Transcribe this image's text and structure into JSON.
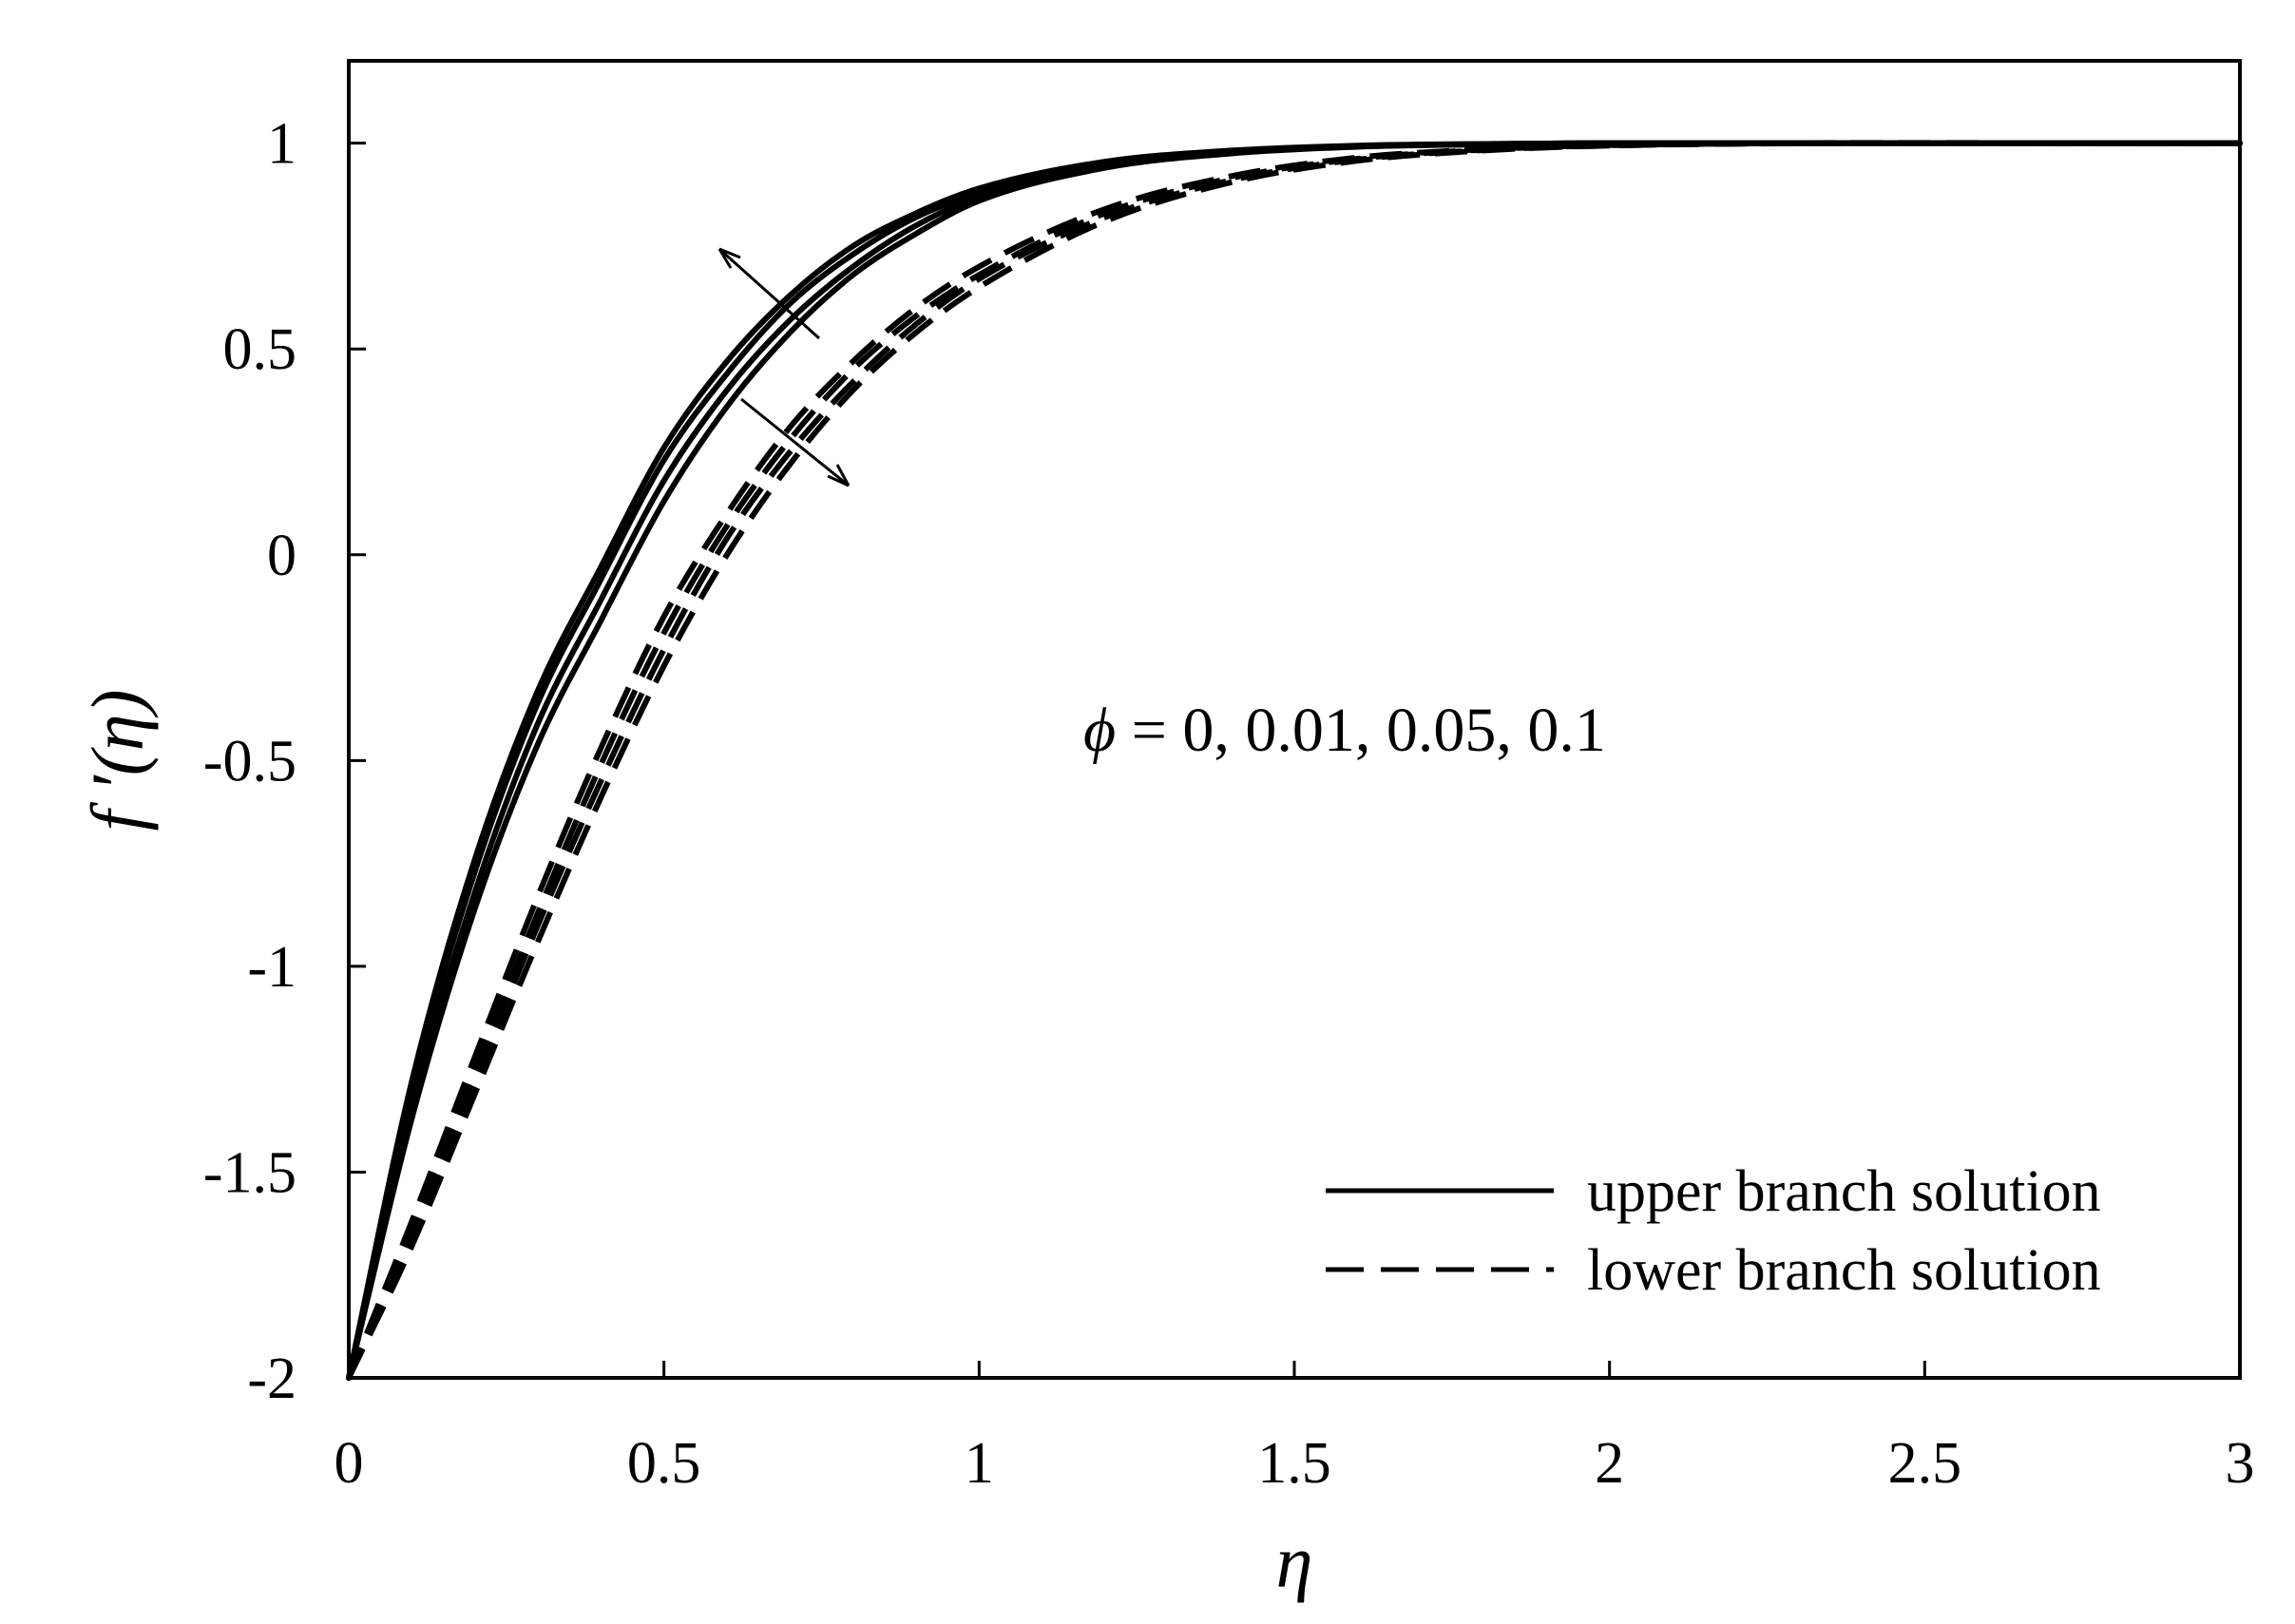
{
  "chart_data": {
    "type": "line",
    "xlabel": "η",
    "ylabel": "f ′(η)",
    "xlim": [
      0,
      3
    ],
    "ylim": [
      -2,
      1.2
    ],
    "xticks": [
      0,
      0.5,
      1,
      1.5,
      2,
      2.5,
      3
    ],
    "xtick_labels": [
      "0",
      "0.5",
      "1",
      "1.5",
      "2",
      "2.5",
      "3"
    ],
    "yticks": [
      -2,
      -1.5,
      -1,
      -0.5,
      0,
      0.5,
      1
    ],
    "ytick_labels": [
      "-2",
      "-1.5",
      "-1",
      "-0.5",
      "0",
      "0.5",
      "1"
    ],
    "grid": false,
    "legend": {
      "placement": "bottom-right",
      "entries": [
        {
          "label": "upper branch solution",
          "style": "solid"
        },
        {
          "label": "lower branch solution",
          "style": "dashed"
        }
      ]
    },
    "annotation": {
      "symbol": "ϕ",
      "text": " = 0, 0.01, 0.05, 0.1"
    },
    "series": [
      {
        "style": "solid",
        "x": [
          0,
          0.1,
          0.2,
          0.3,
          0.4,
          0.5,
          0.6,
          0.7,
          0.8,
          0.9,
          1.0,
          1.2,
          1.4,
          1.6,
          1.8,
          2.0,
          3.0
        ],
        "y": [
          -2,
          -1.28,
          -0.74,
          -0.33,
          -0.03,
          0.26,
          0.47,
          0.63,
          0.75,
          0.83,
          0.89,
          0.955,
          0.982,
          0.994,
          0.998,
          1.0,
          1.0
        ]
      },
      {
        "style": "solid",
        "x": [
          0,
          0.1,
          0.2,
          0.3,
          0.4,
          0.5,
          0.6,
          0.7,
          0.8,
          0.9,
          1.0,
          1.2,
          1.4,
          1.6,
          1.8,
          2.0,
          3.0
        ],
        "y": [
          -2,
          -1.3,
          -0.77,
          -0.36,
          -0.06,
          0.23,
          0.44,
          0.61,
          0.73,
          0.82,
          0.88,
          0.95,
          0.98,
          0.993,
          0.998,
          1.0,
          1.0
        ]
      },
      {
        "style": "solid",
        "x": [
          0,
          0.1,
          0.2,
          0.3,
          0.4,
          0.5,
          0.6,
          0.7,
          0.8,
          0.9,
          1.0,
          1.2,
          1.4,
          1.6,
          1.8,
          2.0,
          3.0
        ],
        "y": [
          -2,
          -1.34,
          -0.82,
          -0.41,
          -0.11,
          0.18,
          0.4,
          0.57,
          0.7,
          0.8,
          0.87,
          0.945,
          0.977,
          0.992,
          0.997,
          1.0,
          1.0
        ]
      },
      {
        "style": "solid",
        "x": [
          0,
          0.1,
          0.2,
          0.3,
          0.4,
          0.5,
          0.6,
          0.7,
          0.8,
          0.9,
          1.0,
          1.2,
          1.4,
          1.6,
          1.8,
          2.0,
          3.0
        ],
        "y": [
          -2,
          -1.37,
          -0.86,
          -0.46,
          -0.16,
          0.13,
          0.36,
          0.54,
          0.68,
          0.78,
          0.86,
          0.94,
          0.975,
          0.991,
          0.997,
          1.0,
          1.0
        ]
      },
      {
        "style": "dashed",
        "x": [
          0,
          0.1,
          0.2,
          0.3,
          0.4,
          0.5,
          0.6,
          0.7,
          0.8,
          0.9,
          1.0,
          1.2,
          1.4,
          1.6,
          1.8,
          2.0,
          3.0
        ],
        "y": [
          -2,
          -1.62,
          -1.22,
          -0.83,
          -0.47,
          -0.15,
          0.1,
          0.31,
          0.47,
          0.6,
          0.7,
          0.84,
          0.92,
          0.965,
          0.985,
          0.995,
          1.0
        ]
      },
      {
        "style": "dashed",
        "x": [
          0,
          0.1,
          0.2,
          0.3,
          0.4,
          0.5,
          0.6,
          0.7,
          0.8,
          0.9,
          1.0,
          1.2,
          1.4,
          1.6,
          1.8,
          2.0,
          3.0
        ],
        "y": [
          -2,
          -1.64,
          -1.25,
          -0.87,
          -0.51,
          -0.19,
          0.07,
          0.28,
          0.45,
          0.58,
          0.68,
          0.83,
          0.915,
          0.962,
          0.984,
          0.995,
          1.0
        ]
      },
      {
        "style": "dashed",
        "x": [
          0,
          0.1,
          0.2,
          0.3,
          0.4,
          0.5,
          0.6,
          0.7,
          0.8,
          0.9,
          1.0,
          1.2,
          1.4,
          1.6,
          1.8,
          2.0,
          3.0
        ],
        "y": [
          -2,
          -1.66,
          -1.28,
          -0.9,
          -0.55,
          -0.23,
          0.04,
          0.25,
          0.42,
          0.56,
          0.67,
          0.82,
          0.91,
          0.96,
          0.983,
          0.994,
          1.0
        ]
      },
      {
        "style": "dashed",
        "x": [
          0,
          0.1,
          0.2,
          0.3,
          0.4,
          0.5,
          0.6,
          0.7,
          0.8,
          0.9,
          1.0,
          1.2,
          1.4,
          1.6,
          1.8,
          2.0,
          3.0
        ],
        "y": [
          -2,
          -1.68,
          -1.31,
          -0.94,
          -0.59,
          -0.27,
          0.0,
          0.22,
          0.4,
          0.54,
          0.65,
          0.81,
          0.905,
          0.957,
          0.982,
          0.994,
          1.0
        ]
      }
    ]
  }
}
